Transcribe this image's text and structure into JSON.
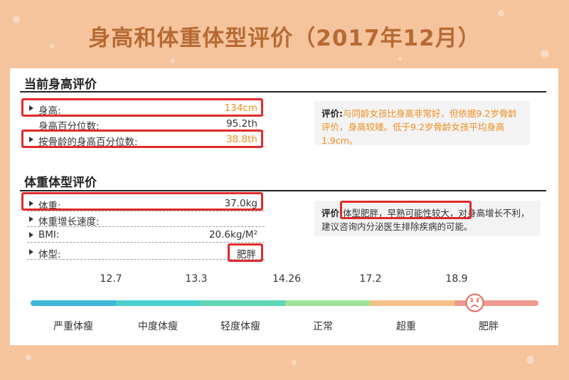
{
  "title": "身高和体重体型评价（2017年12月）",
  "height_section": {
    "title": "当前身高评价",
    "rows": [
      {
        "label": "身高:",
        "value": "134cm"
      },
      {
        "label": "身高百分位数:",
        "value": "95.2th"
      },
      {
        "label": "按骨龄的身高百分位数:",
        "value": "38.8th"
      }
    ],
    "comment_label": "评价:",
    "comment_text": "与同龄女孩比身高非常好，但依据9.2岁骨龄评价，身高较矮。低于9.2岁骨龄女孩平均身高1.9cm。"
  },
  "weight_section": {
    "title": "体重体型评价",
    "rows": [
      {
        "label": "体重:",
        "value": "37.0kg"
      },
      {
        "label": "体重增长速度:",
        "value": ""
      },
      {
        "label": "BMI:",
        "value": "20.6kg/M²"
      },
      {
        "label": "体型:",
        "value": "肥胖"
      }
    ],
    "comment_label": "评价:",
    "comment_highlight": "体型肥胖，早熟可能性较大，",
    "comment_text": "对身高增长不利，建议咨询内分泌医生排除疾病的可能。"
  },
  "scale": {
    "thresholds": [
      "12.7",
      "13.3",
      "14.26",
      "17.2",
      "18.9"
    ],
    "categories": [
      "严重体瘦",
      "中度体瘦",
      "轻度体瘦",
      "正常",
      "超重",
      "肥胖"
    ],
    "colors": [
      "#3fb8d8",
      "#4bcfcf",
      "#5fd6b4",
      "#9fe29a",
      "#f3c187",
      "#ef9b92"
    ],
    "current_category": "肥胖",
    "marker_icon": "sad-face-icon"
  }
}
